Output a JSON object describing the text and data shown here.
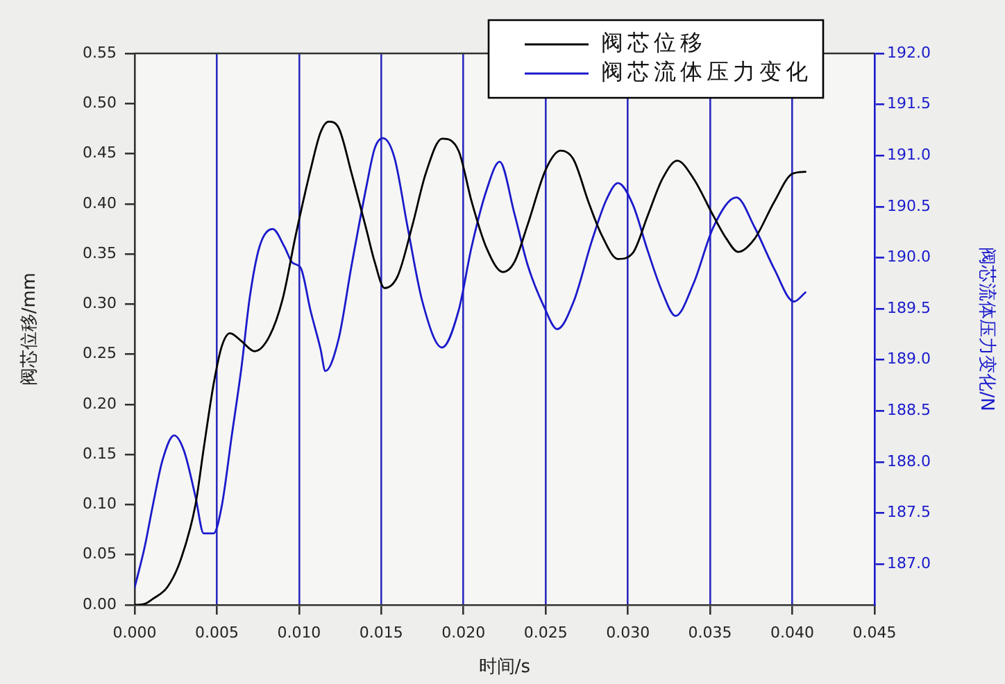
{
  "chart_data": {
    "type": "line",
    "xlabel": "时间/s",
    "ylabel": "阀芯位移/mm",
    "y2label": "阀芯流体压力变化/N",
    "xlim": [
      0,
      0.045
    ],
    "xticks": [
      {
        "value": 0,
        "label": "0.000"
      },
      {
        "value": 0.005,
        "label": "0.005"
      },
      {
        "value": 0.01,
        "label": "0.010"
      },
      {
        "value": 0.015,
        "label": "0.015"
      },
      {
        "value": 0.02,
        "label": "0.020"
      },
      {
        "value": 0.025,
        "label": "0.025"
      },
      {
        "value": 0.03,
        "label": "0.030"
      },
      {
        "value": 0.035,
        "label": "0.035"
      },
      {
        "value": 0.04,
        "label": "0.040"
      },
      {
        "value": 0.045,
        "label": "0.045"
      }
    ],
    "ylim": [
      0,
      0.55
    ],
    "yticks": [
      {
        "value": 0,
        "label": "0.00"
      },
      {
        "value": 0.05,
        "label": "0.05"
      },
      {
        "value": 0.1,
        "label": "0.10"
      },
      {
        "value": 0.15,
        "label": "0.15"
      },
      {
        "value": 0.2,
        "label": "0.20"
      },
      {
        "value": 0.25,
        "label": "0.25"
      },
      {
        "value": 0.3,
        "label": "0.30"
      },
      {
        "value": 0.35,
        "label": "0.35"
      },
      {
        "value": 0.4,
        "label": "0.40"
      },
      {
        "value": 0.45,
        "label": "0.45"
      },
      {
        "value": 0.5,
        "label": "0.50"
      },
      {
        "value": 0.55,
        "label": "0.55"
      }
    ],
    "y2lim": [
      186.6,
      192.0
    ],
    "y2ticks": [
      {
        "value": 187,
        "label": "187.0"
      },
      {
        "value": 187.5,
        "label": "187.5"
      },
      {
        "value": 188,
        "label": "188.0"
      },
      {
        "value": 188.5,
        "label": "188.5"
      },
      {
        "value": 189,
        "label": "189.0"
      },
      {
        "value": 189.5,
        "label": "189.5"
      },
      {
        "value": 190,
        "label": "190.0"
      },
      {
        "value": 190.5,
        "label": "190.5"
      },
      {
        "value": 191,
        "label": "191.0"
      },
      {
        "value": 191.5,
        "label": "191.5"
      },
      {
        "value": 192,
        "label": "192.0"
      }
    ],
    "grid": "x",
    "legend": "top right",
    "marker": "none",
    "line_style": "solid",
    "series": [
      {
        "name": "阀芯位移",
        "color": "#000000",
        "x": [
          0,
          0.0006,
          0.0011,
          0.002,
          0.0028,
          0.0037,
          0.0042,
          0.0048,
          0.0053,
          0.0058,
          0.0065,
          0.0073,
          0.0082,
          0.009,
          0.0098,
          0.0107,
          0.0113,
          0.0118,
          0.0124,
          0.0132,
          0.0141,
          0.0146,
          0.0152,
          0.016,
          0.0169,
          0.0177,
          0.0187,
          0.0197,
          0.0205,
          0.0214,
          0.0224,
          0.0231,
          0.0239,
          0.025,
          0.0259,
          0.0267,
          0.0276,
          0.0284,
          0.0294,
          0.0303,
          0.0312,
          0.0321,
          0.033,
          0.034,
          0.0352,
          0.036,
          0.0367,
          0.0377,
          0.0389,
          0.04,
          0.0408
        ],
        "values": [
          0,
          0.001,
          0.006,
          0.018,
          0.045,
          0.1,
          0.156,
          0.22,
          0.258,
          0.271,
          0.263,
          0.253,
          0.268,
          0.305,
          0.369,
          0.434,
          0.471,
          0.482,
          0.476,
          0.43,
          0.374,
          0.342,
          0.316,
          0.328,
          0.379,
          0.43,
          0.465,
          0.453,
          0.402,
          0.356,
          0.332,
          0.342,
          0.379,
          0.434,
          0.453,
          0.444,
          0.402,
          0.369,
          0.345,
          0.351,
          0.388,
          0.425,
          0.443,
          0.425,
          0.388,
          0.365,
          0.352,
          0.365,
          0.402,
          0.43,
          0.432
        ]
      },
      {
        "name": "阀芯流体压力变化",
        "color": "#1a1acc",
        "axis": "y2",
        "x": [
          0,
          0.0006,
          0.0011,
          0.0017,
          0.0024,
          0.003,
          0.0037,
          0.0042,
          0.0048,
          0.0053,
          0.0059,
          0.0065,
          0.007,
          0.0076,
          0.0084,
          0.0091,
          0.0096,
          0.0101,
          0.0107,
          0.0113,
          0.0116,
          0.0124,
          0.0132,
          0.0141,
          0.0146,
          0.0151,
          0.0158,
          0.0166,
          0.0175,
          0.0187,
          0.0197,
          0.0205,
          0.0214,
          0.0222,
          0.0231,
          0.0239,
          0.0249,
          0.0257,
          0.0267,
          0.0278,
          0.0287,
          0.0294,
          0.0303,
          0.0312,
          0.0321,
          0.0329,
          0.034,
          0.0352,
          0.0366,
          0.0377,
          0.0389,
          0.0401,
          0.0408
        ],
        "values": [
          186.77,
          187.16,
          187.57,
          188.02,
          188.26,
          188.11,
          187.66,
          187.3,
          187.3,
          187.57,
          188.25,
          188.93,
          189.61,
          190.11,
          190.28,
          190.11,
          189.95,
          189.9,
          189.48,
          189.11,
          188.89,
          189.2,
          189.93,
          190.7,
          191.07,
          191.17,
          190.98,
          190.3,
          189.57,
          189.12,
          189.48,
          190.11,
          190.66,
          190.94,
          190.43,
          189.93,
          189.52,
          189.3,
          189.57,
          190.16,
          190.57,
          190.73,
          190.52,
          190.07,
          189.66,
          189.43,
          189.75,
          190.3,
          190.59,
          190.3,
          189.89,
          189.57,
          189.66
        ]
      }
    ]
  }
}
